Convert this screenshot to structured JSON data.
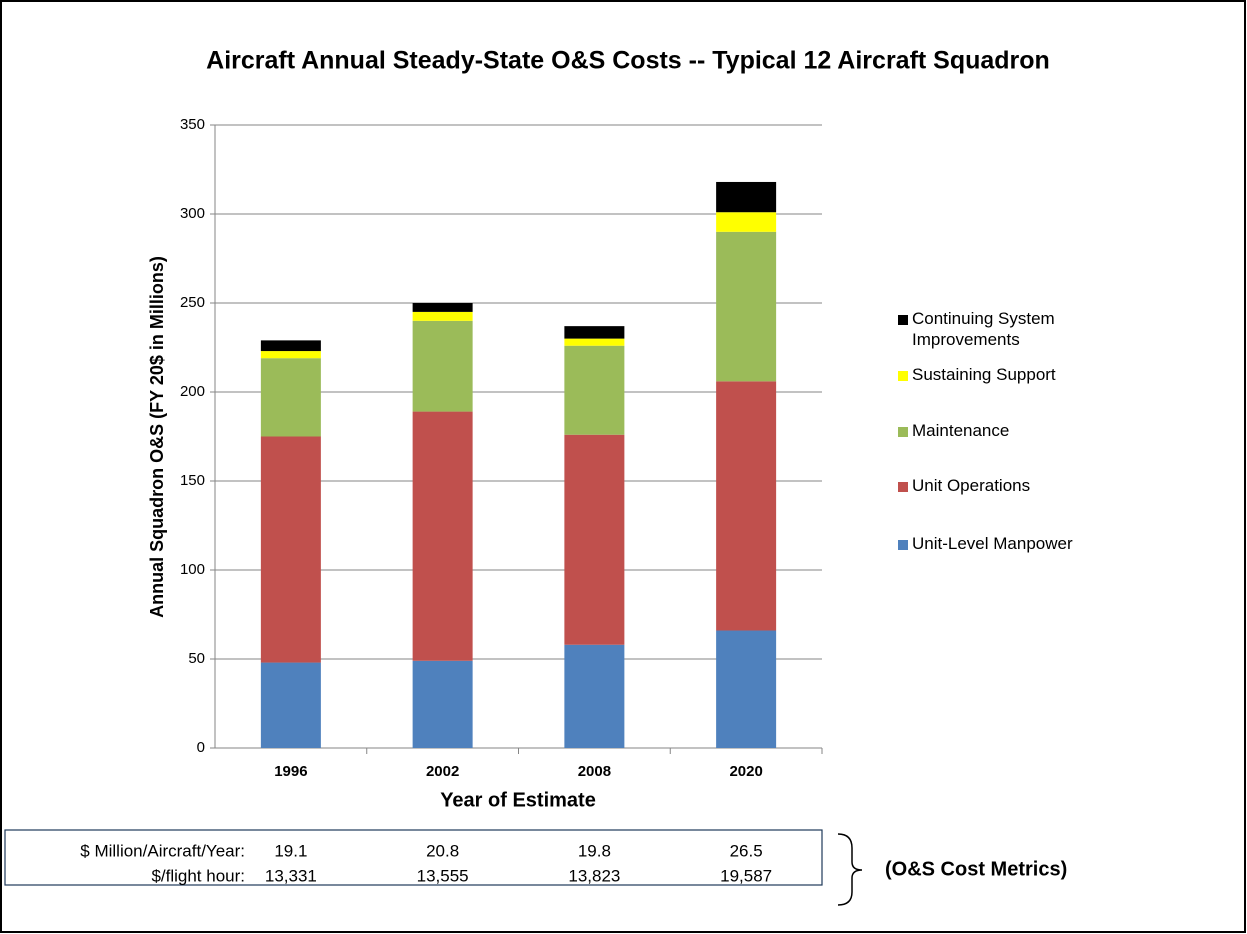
{
  "chart_data": {
    "type": "stacked_bar",
    "title": "Aircraft Annual Steady-State O&S Costs  --  Typical 12 Aircraft Squadron",
    "y_label": "Annual Squadron O&S (FY 20$ in Millions)",
    "x_label": "Year of Estimate",
    "categories": [
      "1996",
      "2002",
      "2008",
      "2020"
    ],
    "series": [
      {
        "name": "Unit-Level Manpower",
        "color": "#4f81bd",
        "values": [
          48,
          49,
          58,
          66
        ]
      },
      {
        "name": "Unit  Operations",
        "color": "#c0504d",
        "values": [
          127,
          140,
          118,
          140
        ]
      },
      {
        "name": "Maintenance",
        "color": "#9bbb59",
        "values": [
          44,
          51,
          50,
          84
        ]
      },
      {
        "name": "Sustaining Support",
        "color": "#ffff00",
        "values": [
          4,
          5,
          4,
          11
        ]
      },
      {
        "name": "Continuing System Improvements",
        "color": "#000000",
        "values": [
          6,
          5,
          7,
          17
        ]
      }
    ],
    "ylim": [
      0,
      350
    ],
    "yticks": [
      0,
      50,
      100,
      150,
      200,
      250,
      300,
      350
    ],
    "grid": true,
    "legend": "right",
    "table": {
      "rows": [
        {
          "label": "$ Million/Aircraft/Year:",
          "values": [
            "19.1",
            "20.8",
            "19.8",
            "26.5"
          ]
        },
        {
          "label": "$/flight hour:",
          "values": [
            "13,331",
            "13,555",
            "13,823",
            "19,587"
          ]
        }
      ],
      "note": "(O&S Cost Metrics)"
    }
  }
}
